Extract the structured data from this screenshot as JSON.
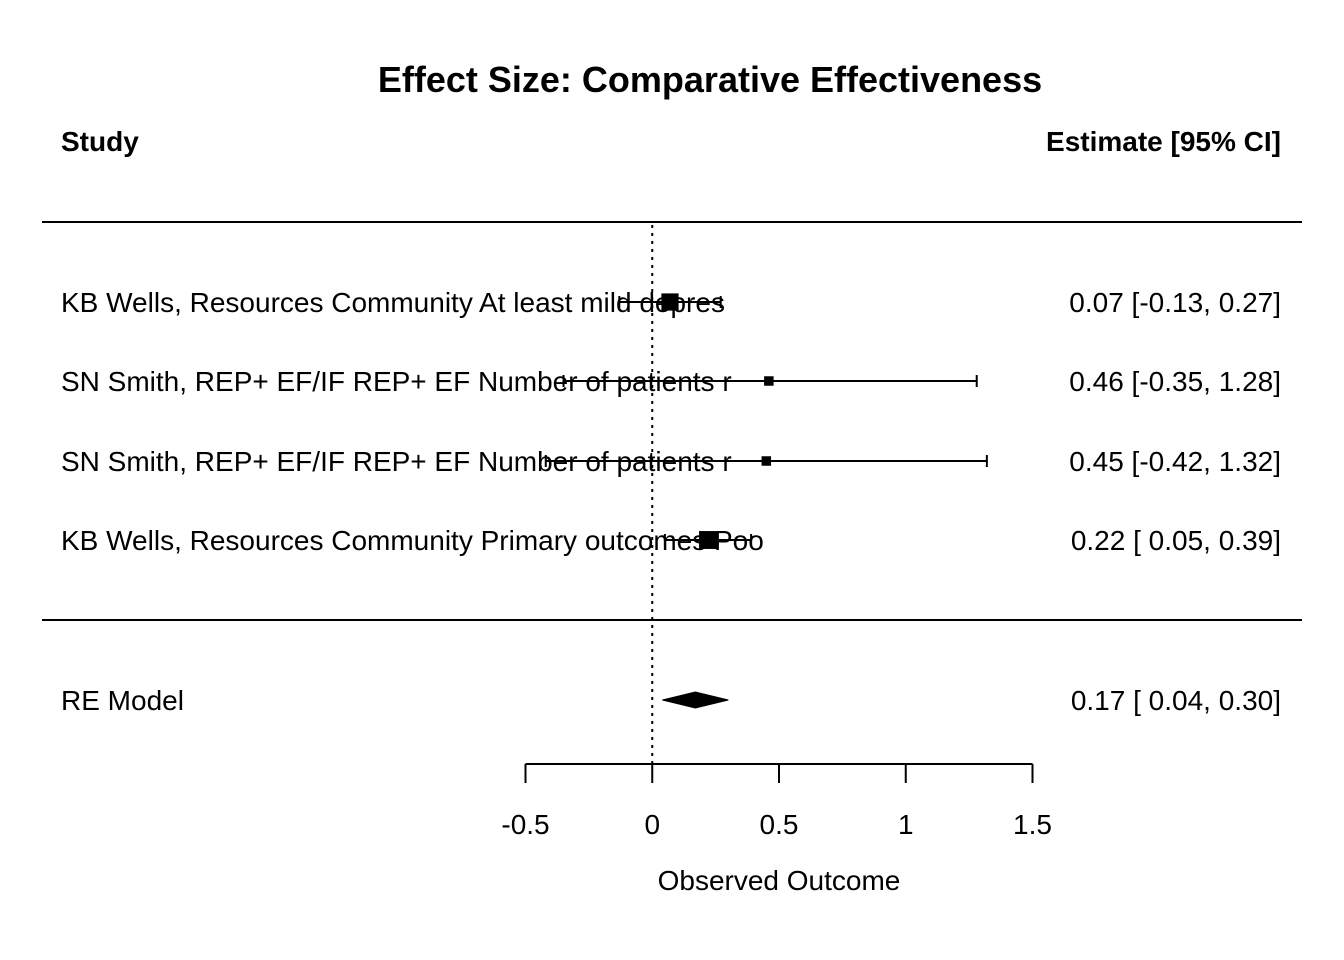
{
  "chart_data": {
    "type": "forest",
    "title": "Effect Size: Comparative Effectiveness",
    "column_headers": {
      "study": "Study",
      "estimate": "Estimate [95% CI]"
    },
    "studies": [
      {
        "label": "KB Wells,  Resources  Community  At least mild depres",
        "estimate": 0.07,
        "ci_lower": -0.13,
        "ci_upper": 0.27,
        "weight": 0.8,
        "estimate_text": "0.07 [-0.13, 0.27]"
      },
      {
        "label": "SN Smith,  REP+ EF/IF REP+ EF Number of patients r",
        "estimate": 0.46,
        "ci_lower": -0.35,
        "ci_upper": 1.28,
        "weight": 0.25,
        "estimate_text": "0.46 [-0.35, 1.28]"
      },
      {
        "label": "SN Smith,  REP+ EF/IF REP+ EF Number of patients r",
        "estimate": 0.45,
        "ci_lower": -0.42,
        "ci_upper": 1.32,
        "weight": 0.25,
        "estimate_text": "0.45 [-0.42, 1.32]"
      },
      {
        "label": "KB Wells,  Resources  Community  Primary outcomes Poo",
        "estimate": 0.22,
        "ci_lower": 0.05,
        "ci_upper": 0.39,
        "weight": 0.85,
        "estimate_text": "0.22 [ 0.05, 0.39]"
      }
    ],
    "summary": {
      "label": "RE Model",
      "estimate": 0.17,
      "ci_lower": 0.04,
      "ci_upper": 0.3,
      "estimate_text": "0.17 [ 0.04, 0.30]"
    },
    "xlabel": "Observed Outcome",
    "xticks": [
      -0.5,
      0,
      0.5,
      1,
      1.5
    ],
    "xtick_labels": [
      "-0.5",
      "0",
      "0.5",
      "1",
      "1.5"
    ],
    "xlim": [
      -0.5,
      1.5
    ],
    "reference_line": 0
  }
}
